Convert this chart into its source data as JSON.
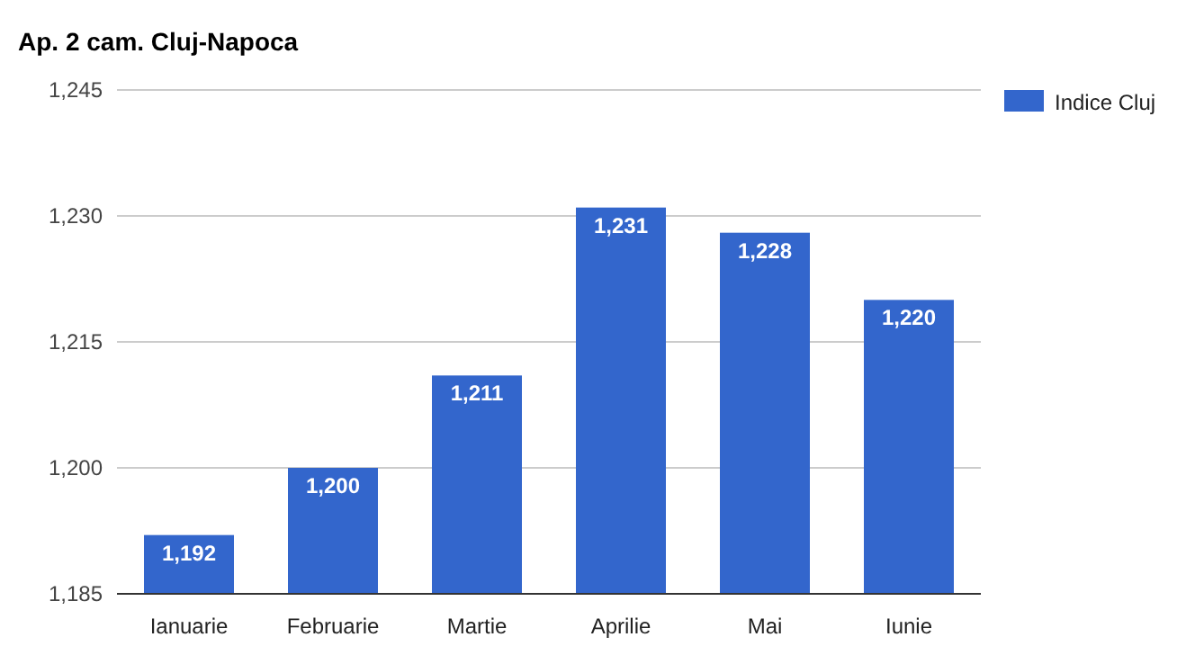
{
  "chart_data": {
    "type": "bar",
    "title": "Ap. 2 cam. Cluj-Napoca",
    "categories": [
      "Ianuarie",
      "Februarie",
      "Martie",
      "Aprilie",
      "Mai",
      "Iunie"
    ],
    "series": [
      {
        "name": "Indice Cluj",
        "color": "#3366cc",
        "values": [
          1192,
          1200,
          1211,
          1231,
          1228,
          1220
        ],
        "value_labels": [
          "1,192",
          "1,200",
          "1,211",
          "1,231",
          "1,228",
          "1,220"
        ]
      }
    ],
    "ylim": [
      1185,
      1245
    ],
    "yticks": [
      {
        "value": 1185,
        "label": "1,185"
      },
      {
        "value": 1200,
        "label": "1,200"
      },
      {
        "value": 1215,
        "label": "1,215"
      },
      {
        "value": 1230,
        "label": "1,230"
      },
      {
        "value": 1245,
        "label": "1,245"
      }
    ],
    "grid": "y",
    "legend": "top right"
  }
}
